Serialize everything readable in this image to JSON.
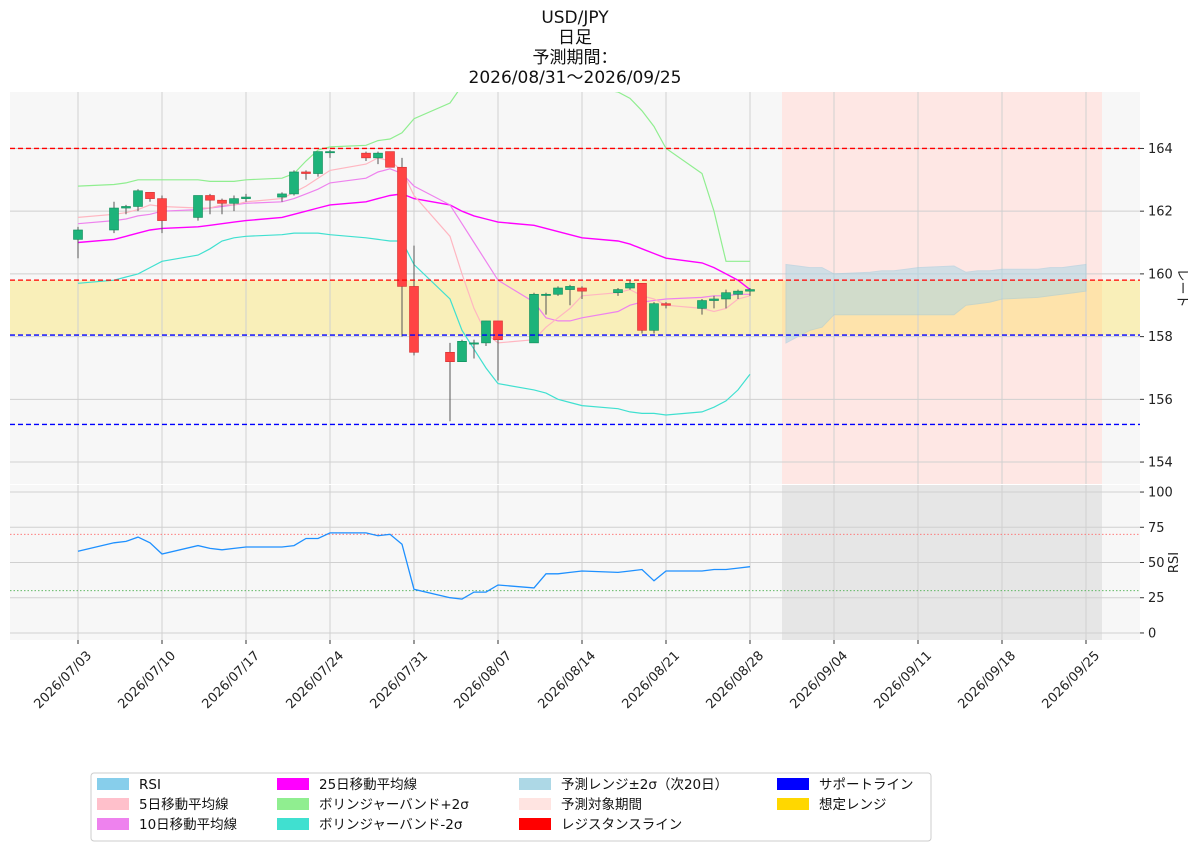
{
  "title": {
    "line1": "USD/JPY",
    "line2": "日足",
    "line3": "予測期間：",
    "line4": "2026/08/31～2026/09/25"
  },
  "chart_data": [
    {
      "type": "candlestick",
      "ylabel": "レート",
      "ylim": [
        153.3,
        165.8
      ],
      "yticks": [
        154,
        156,
        158,
        160,
        162,
        164
      ],
      "x_dates": [
        "2026/07/03",
        "2026/07/06",
        "2026/07/07",
        "2026/07/08",
        "2026/07/09",
        "2026/07/10",
        "2026/07/13",
        "2026/07/14",
        "2026/07/15",
        "2026/07/16",
        "2026/07/17",
        "2026/07/20",
        "2026/07/21",
        "2026/07/22",
        "2026/07/23",
        "2026/07/24",
        "2026/07/27",
        "2026/07/28",
        "2026/07/29",
        "2026/07/30",
        "2026/07/31",
        "2026/08/03",
        "2026/08/04",
        "2026/08/05",
        "2026/08/06",
        "2026/08/07",
        "2026/08/10",
        "2026/08/11",
        "2026/08/12",
        "2026/08/13",
        "2026/08/14",
        "2026/08/17",
        "2026/08/18",
        "2026/08/19",
        "2026/08/20",
        "2026/08/21",
        "2026/08/24",
        "2026/08/25",
        "2026/08/26",
        "2026/08/27",
        "2026/08/28"
      ],
      "ohlc": [
        [
          161.1,
          161.5,
          160.5,
          161.4
        ],
        [
          161.4,
          162.3,
          161.3,
          162.1
        ],
        [
          162.1,
          162.2,
          161.9,
          162.15
        ],
        [
          162.15,
          162.7,
          162.0,
          162.65
        ],
        [
          162.6,
          162.6,
          162.3,
          162.4
        ],
        [
          162.4,
          162.5,
          161.3,
          161.7
        ],
        [
          161.8,
          162.5,
          161.7,
          162.5
        ],
        [
          162.5,
          162.55,
          161.9,
          162.35
        ],
        [
          162.35,
          162.4,
          161.9,
          162.25
        ],
        [
          162.25,
          162.5,
          162.0,
          162.4
        ],
        [
          162.4,
          162.55,
          162.3,
          162.45
        ],
        [
          162.45,
          162.6,
          162.3,
          162.55
        ],
        [
          162.55,
          163.3,
          162.5,
          163.25
        ],
        [
          163.25,
          163.3,
          163.0,
          163.2
        ],
        [
          163.2,
          163.9,
          163.1,
          163.9
        ],
        [
          163.9,
          163.95,
          163.7,
          163.9
        ],
        [
          163.85,
          163.9,
          163.6,
          163.7
        ],
        [
          163.7,
          163.9,
          163.5,
          163.85
        ],
        [
          163.9,
          163.9,
          163.4,
          163.4
        ],
        [
          163.4,
          163.7,
          158.0,
          159.6
        ],
        [
          159.6,
          160.9,
          157.4,
          157.5
        ],
        [
          157.5,
          157.8,
          155.3,
          157.2
        ],
        [
          157.2,
          157.9,
          157.2,
          157.85
        ],
        [
          157.8,
          157.9,
          157.3,
          157.8
        ],
        [
          157.8,
          158.5,
          157.7,
          158.5
        ],
        [
          158.5,
          158.5,
          156.6,
          157.9
        ],
        [
          157.8,
          159.4,
          157.8,
          159.35
        ],
        [
          159.35,
          159.4,
          158.7,
          159.35
        ],
        [
          159.35,
          159.6,
          159.3,
          159.55
        ],
        [
          159.5,
          159.65,
          159.0,
          159.6
        ],
        [
          159.55,
          159.6,
          159.2,
          159.45
        ],
        [
          159.4,
          159.55,
          159.3,
          159.5
        ],
        [
          159.55,
          159.8,
          159.5,
          159.7
        ],
        [
          159.7,
          159.7,
          158.1,
          158.2
        ],
        [
          158.2,
          159.1,
          158.1,
          159.05
        ],
        [
          159.05,
          159.1,
          158.9,
          159.0
        ],
        [
          158.9,
          159.2,
          158.7,
          159.15
        ],
        [
          159.15,
          159.3,
          158.9,
          159.2
        ],
        [
          159.2,
          159.5,
          158.9,
          159.4
        ],
        [
          159.35,
          159.5,
          159.2,
          159.45
        ],
        [
          159.45,
          159.55,
          159.3,
          159.5
        ]
      ],
      "sma5": [
        161.8,
        161.9,
        161.95,
        162.05,
        162.2,
        162.15,
        162.1,
        162.1,
        162.2,
        162.2,
        162.3,
        162.4,
        162.6,
        162.8,
        163.05,
        163.3,
        163.5,
        163.7,
        163.6,
        163.3,
        162.5,
        161.2,
        160.0,
        158.9,
        158.1,
        157.8,
        157.9,
        158.3,
        158.6,
        158.9,
        159.3,
        159.4,
        159.5,
        159.3,
        159.2,
        159.0,
        158.9,
        158.8,
        158.9,
        159.2,
        159.3
      ],
      "sma10": [
        161.6,
        161.7,
        161.75,
        161.85,
        161.9,
        162.0,
        162.05,
        162.1,
        162.15,
        162.2,
        162.25,
        162.3,
        162.4,
        162.55,
        162.7,
        162.9,
        163.05,
        163.25,
        163.35,
        163.2,
        162.8,
        162.2,
        161.6,
        161.0,
        160.4,
        159.8,
        159.1,
        158.6,
        158.5,
        158.5,
        158.6,
        158.8,
        159.0,
        159.1,
        159.15,
        159.2,
        159.25,
        159.3,
        159.3,
        159.35,
        159.35
      ],
      "sma25": [
        161.0,
        161.1,
        161.2,
        161.3,
        161.4,
        161.45,
        161.5,
        161.55,
        161.6,
        161.65,
        161.7,
        161.8,
        161.9,
        162.0,
        162.1,
        162.2,
        162.3,
        162.4,
        162.5,
        162.55,
        162.4,
        162.2,
        162.0,
        161.85,
        161.75,
        161.65,
        161.55,
        161.45,
        161.35,
        161.25,
        161.15,
        161.05,
        160.95,
        160.8,
        160.65,
        160.5,
        160.35,
        160.2,
        160.0,
        159.8,
        159.5
      ],
      "bb_upper": [
        162.8,
        162.85,
        162.9,
        163.0,
        163.0,
        163.0,
        163.0,
        162.95,
        162.95,
        162.95,
        163.0,
        163.05,
        163.2,
        163.6,
        163.95,
        164.05,
        164.1,
        164.25,
        164.3,
        164.5,
        164.95,
        165.45,
        166.0,
        166.0,
        166.0,
        166.0,
        166.0,
        166.0,
        166.0,
        166.0,
        166.0,
        165.8,
        165.6,
        165.2,
        164.7,
        164.0,
        163.2,
        162.0,
        160.4,
        160.4,
        160.4
      ],
      "bb_lower": [
        159.7,
        159.8,
        159.9,
        160.0,
        160.2,
        160.4,
        160.6,
        160.8,
        161.05,
        161.15,
        161.2,
        161.25,
        161.3,
        161.3,
        161.3,
        161.25,
        161.15,
        161.1,
        161.05,
        161.05,
        160.3,
        159.2,
        158.2,
        157.6,
        157.0,
        156.5,
        156.3,
        156.2,
        156.0,
        155.9,
        155.8,
        155.7,
        155.6,
        155.55,
        155.55,
        155.5,
        155.6,
        155.75,
        155.95,
        156.3,
        156.8
      ],
      "bb_lower_tail": [
        157.3,
        157.5
      ],
      "rsi": [
        58,
        64,
        65,
        68,
        64,
        56,
        62,
        60,
        59,
        60,
        61,
        61,
        62,
        67,
        67,
        71,
        71,
        69,
        70,
        63,
        31,
        25,
        24,
        29,
        29,
        34,
        32,
        42,
        42,
        43,
        44,
        43,
        44,
        45,
        37,
        44,
        44,
        45,
        45,
        46,
        47
      ],
      "rsi_ylim": [
        -5,
        105
      ],
      "rsi_yticks": [
        0,
        25,
        50,
        75,
        100
      ],
      "rsi_ylabel": "RSI",
      "resistance": [
        164.0,
        159.8
      ],
      "support": [
        158.05,
        155.2
      ],
      "assumed_range": [
        158.05,
        159.8
      ],
      "forecast_dates": [
        "2026/08/31",
        "2026/09/01",
        "2026/09/02",
        "2026/09/03",
        "2026/09/04",
        "2026/09/07",
        "2026/09/08",
        "2026/09/09",
        "2026/09/10",
        "2026/09/11",
        "2026/09/14",
        "2026/09/15",
        "2026/09/16",
        "2026/09/17",
        "2026/09/18",
        "2026/09/21",
        "2026/09/22",
        "2026/09/23",
        "2026/09/24",
        "2026/09/25"
      ],
      "forecast_upper": [
        160.3,
        160.25,
        160.2,
        160.2,
        160.0,
        160.05,
        160.1,
        160.1,
        160.15,
        160.2,
        160.25,
        160.05,
        160.1,
        160.1,
        160.15,
        160.15,
        160.2,
        160.2,
        160.25,
        160.3
      ],
      "forecast_lower": [
        157.8,
        158.0,
        158.2,
        158.3,
        158.7,
        158.7,
        158.7,
        158.7,
        158.7,
        158.7,
        158.7,
        159.0,
        159.05,
        159.1,
        159.2,
        159.25,
        159.3,
        159.35,
        159.4,
        159.45
      ],
      "x_ticks": [
        "2026/07/03",
        "2026/07/10",
        "2026/07/17",
        "2026/07/24",
        "2026/07/31",
        "2026/08/07",
        "2026/08/14",
        "2026/08/21",
        "2026/08/28",
        "2026/09/04",
        "2026/09/11",
        "2026/09/18",
        "2026/09/25"
      ]
    }
  ],
  "legend": [
    {
      "label": "RSI",
      "color": "#87ceeb"
    },
    {
      "label": "5日移動平均線",
      "color": "#ffc0cb"
    },
    {
      "label": "10日移動平均線",
      "color": "#ee82ee"
    },
    {
      "label": "25日移動平均線",
      "color": "#ff00ff"
    },
    {
      "label": "ボリンジャーバンド+2σ",
      "color": "#90ee90"
    },
    {
      "label": "ボリンジャーバンド-2σ",
      "color": "#40e0d0"
    },
    {
      "label": "予測レンジ±2σ（次20日）",
      "color": "#add8e6"
    },
    {
      "label": "予測対象期間",
      "color": "#ffe4e1"
    },
    {
      "label": "レジスタンスライン",
      "color": "#ff0000"
    },
    {
      "label": "サポートライン",
      "color": "#0000ff"
    },
    {
      "label": "想定レンジ",
      "color": "#ffd700"
    }
  ]
}
